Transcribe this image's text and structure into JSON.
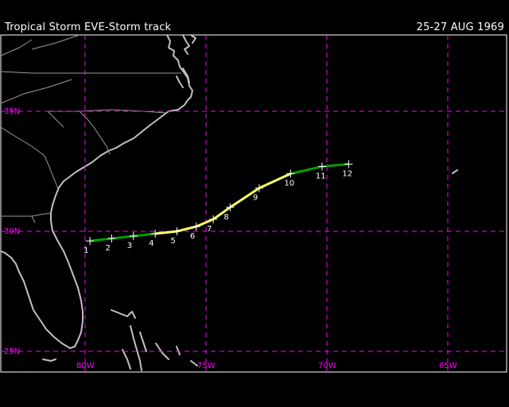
{
  "header": {
    "title": "Tropical Storm EVE-Storm track",
    "dates": "25-27 AUG 1969"
  },
  "map": {
    "lat_labels": [
      "35N",
      "30N",
      "25N"
    ],
    "lon_labels": [
      "80W",
      "75W",
      "70W",
      "65W"
    ],
    "grid_color": "#ff00ff",
    "coast_color": "#c0c0c0"
  },
  "track": {
    "points": [
      {
        "label": "1",
        "lon": -79.8,
        "lat": 29.6,
        "stage": "depression"
      },
      {
        "label": "2",
        "lon": -78.9,
        "lat": 29.7,
        "stage": "depression"
      },
      {
        "label": "3",
        "lon": -78.0,
        "lat": 29.8,
        "stage": "depression"
      },
      {
        "label": "4",
        "lon": -77.1,
        "lat": 29.9,
        "stage": "depression"
      },
      {
        "label": "5",
        "lon": -76.2,
        "lat": 30.0,
        "stage": "storm"
      },
      {
        "label": "6",
        "lon": -75.4,
        "lat": 30.2,
        "stage": "storm"
      },
      {
        "label": "7",
        "lon": -74.7,
        "lat": 30.5,
        "stage": "storm"
      },
      {
        "label": "8",
        "lon": -74.0,
        "lat": 31.0,
        "stage": "storm"
      },
      {
        "label": "9",
        "lon": -72.8,
        "lat": 31.8,
        "stage": "storm"
      },
      {
        "label": "10",
        "lon": -71.5,
        "lat": 32.4,
        "stage": "depression"
      },
      {
        "label": "11",
        "lon": -70.2,
        "lat": 32.7,
        "stage": "depression"
      },
      {
        "label": "12",
        "lon": -69.1,
        "lat": 32.8,
        "stage": "depression"
      }
    ],
    "colors": {
      "depression": "#00a000",
      "storm": "#ffff66"
    }
  }
}
